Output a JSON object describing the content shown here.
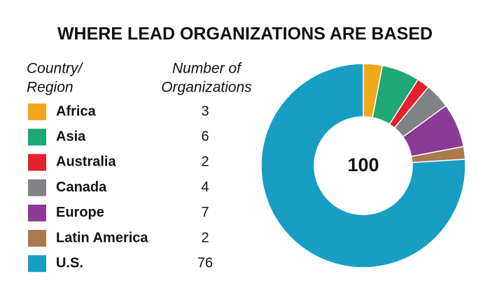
{
  "chart_data": {
    "type": "donut",
    "title": "WHERE LEAD ORGANIZATIONS ARE BASED",
    "label_header": [
      "Country/",
      "Region"
    ],
    "value_header": [
      "Number of",
      "Organizations"
    ],
    "categories": [
      "Africa",
      "Asia",
      "Australia",
      "Canada",
      "Europe",
      "Latin America",
      "U.S."
    ],
    "values": [
      3,
      6,
      2,
      4,
      7,
      2,
      76
    ],
    "colors": [
      "#f2a81d",
      "#1fa774",
      "#e4222e",
      "#808285",
      "#8b3a96",
      "#a87a4e",
      "#179ec2"
    ],
    "total": 100
  }
}
